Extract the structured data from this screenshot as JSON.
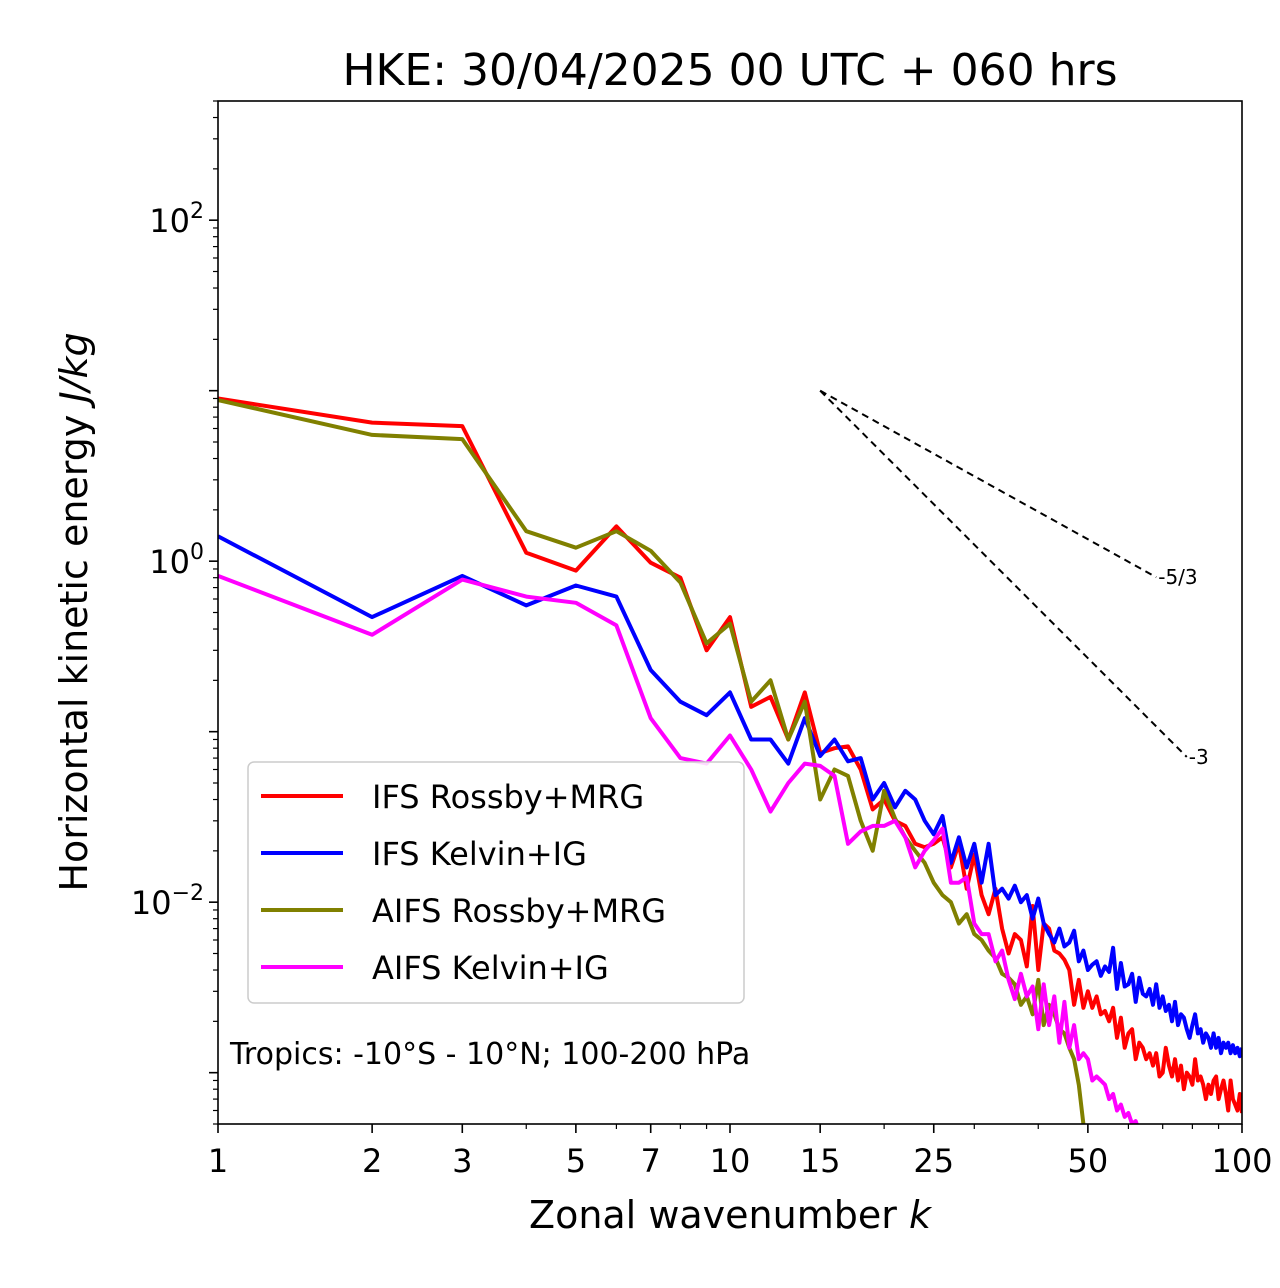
{
  "chart_data": {
    "type": "line",
    "title": "HKE: 30/04/2025 00 UTC + 060 hrs",
    "xlabel_main": "Zonal wavenumber ",
    "xlabel_italic": "k",
    "ylabel_main": "Horizontal kinetic energy ",
    "ylabel_italic": "J/kg",
    "xscale": "log",
    "yscale": "log",
    "xlim": [
      1,
      100
    ],
    "ylim": [
      0.0005,
      500
    ],
    "x_ticks": [
      {
        "value": 1,
        "label": "1"
      },
      {
        "value": 2,
        "label": "2"
      },
      {
        "value": 3,
        "label": "3"
      },
      {
        "value": 5,
        "label": "5"
      },
      {
        "value": 7,
        "label": "7"
      },
      {
        "value": 10,
        "label": "10"
      },
      {
        "value": 15,
        "label": "15"
      },
      {
        "value": 25,
        "label": "25"
      },
      {
        "value": 50,
        "label": "50"
      },
      {
        "value": 100,
        "label": "100"
      }
    ],
    "y_ticks": [
      {
        "value": 100,
        "base": "10",
        "exp": "2"
      },
      {
        "value": 1,
        "base": "10",
        "exp": "0"
      },
      {
        "value": 0.01,
        "base": "10",
        "exp": "−2"
      }
    ],
    "legend_position": "lower-left",
    "annotation": "Tropics: -10°S - 10°N; 100-200 hPa",
    "reference_lines": [
      {
        "label": "-5/3",
        "slope": -1.6667,
        "x0": 15,
        "y0": 10,
        "x1": 68
      },
      {
        "label": "-3",
        "slope": -3,
        "x0": 15,
        "y0": 10,
        "x1": 78
      }
    ],
    "series": [
      {
        "name": "IFS Rossby+MRG",
        "color": "#ff0000",
        "x": [
          1,
          2,
          3,
          4,
          5,
          6,
          7,
          8,
          9,
          10,
          11,
          12,
          13,
          14,
          15,
          16,
          17,
          18,
          19,
          20,
          21,
          22,
          23,
          24,
          25,
          26,
          27,
          28,
          29,
          30,
          31,
          32,
          33,
          34,
          35,
          36,
          37,
          38,
          39,
          40,
          41,
          42,
          43,
          44,
          45,
          46,
          47,
          48,
          49,
          50,
          51,
          52,
          53,
          54,
          55,
          56,
          57,
          58,
          59,
          60,
          61,
          62,
          63,
          64,
          65,
          66,
          67,
          68,
          69,
          70,
          71,
          72,
          73,
          74,
          75,
          76,
          77,
          78,
          79,
          80,
          81,
          82,
          83,
          84,
          85,
          86,
          87,
          88,
          89,
          90,
          91,
          92,
          93,
          94,
          95,
          96,
          97,
          98,
          99,
          100
        ],
        "values": [
          9.0,
          6.5,
          6.2,
          1.12,
          0.88,
          1.6,
          0.98,
          0.8,
          0.3,
          0.47,
          0.14,
          0.16,
          0.09,
          0.17,
          0.075,
          0.08,
          0.082,
          0.06,
          0.035,
          0.04,
          0.03,
          0.028,
          0.022,
          0.021,
          0.022,
          0.024,
          0.016,
          0.022,
          0.012,
          0.019,
          0.011,
          0.0085,
          0.012,
          0.007,
          0.005,
          0.0065,
          0.006,
          0.0042,
          0.0095,
          0.004,
          0.0075,
          0.007,
          0.0052,
          0.005,
          0.0046,
          0.004,
          0.0025,
          0.0035,
          0.0024,
          0.003,
          0.0024,
          0.0028,
          0.0022,
          0.0023,
          0.002,
          0.0024,
          0.0016,
          0.0021,
          0.0014,
          0.0017,
          0.0018,
          0.0012,
          0.0015,
          0.0014,
          0.0012,
          0.0013,
          0.0011,
          0.0013,
          0.00095,
          0.001,
          0.0014,
          0.0011,
          0.00095,
          0.0012,
          0.0009,
          0.0011,
          0.0008,
          0.001,
          0.00095,
          0.00085,
          0.0012,
          0.0009,
          0.00095,
          0.00085,
          0.0007,
          0.00085,
          0.00075,
          0.0009,
          0.00095,
          0.0007,
          0.0008,
          0.0009,
          0.00075,
          0.0006,
          0.0009,
          0.0007,
          0.00065,
          0.0006,
          0.00075,
          0.00058
        ]
      },
      {
        "name": "IFS Kelvin+IG",
        "color": "#0000ff",
        "x": [
          1,
          2,
          3,
          4,
          5,
          6,
          7,
          8,
          9,
          10,
          11,
          12,
          13,
          14,
          15,
          16,
          17,
          18,
          19,
          20,
          21,
          22,
          23,
          24,
          25,
          26,
          27,
          28,
          29,
          30,
          31,
          32,
          33,
          34,
          35,
          36,
          37,
          38,
          39,
          40,
          41,
          42,
          43,
          44,
          45,
          46,
          47,
          48,
          49,
          50,
          51,
          52,
          53,
          54,
          55,
          56,
          57,
          58,
          59,
          60,
          61,
          62,
          63,
          64,
          65,
          66,
          67,
          68,
          69,
          70,
          71,
          72,
          73,
          74,
          75,
          76,
          77,
          78,
          79,
          80,
          81,
          82,
          83,
          84,
          85,
          86,
          87,
          88,
          89,
          90,
          91,
          92,
          93,
          94,
          95,
          96,
          97,
          98,
          99,
          100
        ],
        "values": [
          1.4,
          0.47,
          0.82,
          0.55,
          0.72,
          0.62,
          0.23,
          0.15,
          0.125,
          0.17,
          0.09,
          0.09,
          0.065,
          0.12,
          0.072,
          0.09,
          0.067,
          0.07,
          0.04,
          0.05,
          0.036,
          0.045,
          0.04,
          0.03,
          0.025,
          0.032,
          0.017,
          0.024,
          0.016,
          0.022,
          0.013,
          0.022,
          0.011,
          0.012,
          0.0105,
          0.0125,
          0.01,
          0.011,
          0.008,
          0.0105,
          0.0075,
          0.0065,
          0.0058,
          0.007,
          0.0055,
          0.0058,
          0.0068,
          0.0045,
          0.0052,
          0.004,
          0.0043,
          0.0045,
          0.0037,
          0.0042,
          0.0039,
          0.0054,
          0.0031,
          0.0044,
          0.0032,
          0.0033,
          0.0038,
          0.0026,
          0.0036,
          0.0029,
          0.0028,
          0.0031,
          0.0025,
          0.0033,
          0.0024,
          0.0028,
          0.0023,
          0.0025,
          0.002,
          0.0026,
          0.0019,
          0.0022,
          0.0021,
          0.0018,
          0.0016,
          0.0019,
          0.0022,
          0.0017,
          0.0018,
          0.0015,
          0.0017,
          0.0016,
          0.0014,
          0.0017,
          0.0014,
          0.0016,
          0.0013,
          0.0015,
          0.0014,
          0.0015,
          0.0013,
          0.00145,
          0.0013,
          0.0014,
          0.00125,
          0.0014
        ]
      },
      {
        "name": "AIFS Rossby+MRG",
        "color": "#808000",
        "x": [
          1,
          2,
          3,
          4,
          5,
          6,
          7,
          8,
          9,
          10,
          11,
          12,
          13,
          14,
          15,
          16,
          17,
          18,
          19,
          20,
          21,
          22,
          23,
          24,
          25,
          26,
          27,
          28,
          29,
          30,
          31,
          32,
          33,
          34,
          35,
          36,
          37,
          38,
          39,
          40,
          41,
          42,
          43,
          44,
          45,
          46,
          47,
          48,
          49
        ],
        "values": [
          8.8,
          5.5,
          5.2,
          1.5,
          1.2,
          1.5,
          1.15,
          0.75,
          0.33,
          0.43,
          0.15,
          0.2,
          0.09,
          0.15,
          0.04,
          0.06,
          0.055,
          0.03,
          0.02,
          0.045,
          0.031,
          0.024,
          0.02,
          0.017,
          0.013,
          0.011,
          0.01,
          0.0075,
          0.0085,
          0.0065,
          0.006,
          0.0052,
          0.0047,
          0.0038,
          0.0036,
          0.0033,
          0.0025,
          0.0028,
          0.0022,
          0.0035,
          0.0019,
          0.0025,
          0.0022,
          0.0018,
          0.0017,
          0.0014,
          0.0012,
          0.00085,
          0.0005
        ]
      },
      {
        "name": "AIFS Kelvin+IG",
        "color": "#ff00ff",
        "x": [
          1,
          2,
          3,
          4,
          5,
          6,
          7,
          8,
          9,
          10,
          11,
          12,
          13,
          14,
          15,
          16,
          17,
          18,
          19,
          20,
          21,
          22,
          23,
          24,
          25,
          26,
          27,
          28,
          29,
          30,
          31,
          32,
          33,
          34,
          35,
          36,
          37,
          38,
          39,
          40,
          41,
          42,
          43,
          44,
          45,
          46,
          47,
          48,
          49,
          50,
          51,
          52,
          53,
          54,
          55,
          56,
          57,
          58,
          59,
          60,
          61,
          62,
          63,
          64,
          65,
          66
        ],
        "values": [
          0.82,
          0.37,
          0.78,
          0.62,
          0.57,
          0.42,
          0.12,
          0.07,
          0.065,
          0.095,
          0.06,
          0.034,
          0.05,
          0.065,
          0.063,
          0.055,
          0.022,
          0.026,
          0.028,
          0.028,
          0.03,
          0.024,
          0.016,
          0.02,
          0.023,
          0.027,
          0.013,
          0.013,
          0.014,
          0.0075,
          0.0065,
          0.0065,
          0.0045,
          0.0052,
          0.0035,
          0.0027,
          0.0038,
          0.0028,
          0.0032,
          0.0018,
          0.0033,
          0.0019,
          0.0028,
          0.0015,
          0.0026,
          0.0014,
          0.0019,
          0.0012,
          0.0013,
          0.0012,
          0.0009,
          0.00095,
          0.0009,
          0.00085,
          0.0007,
          0.00075,
          0.0006,
          0.00065,
          0.00055,
          0.00058,
          0.0005,
          0.00052,
          0.00045,
          0.00048,
          0.00042,
          0.0004
        ]
      }
    ]
  }
}
